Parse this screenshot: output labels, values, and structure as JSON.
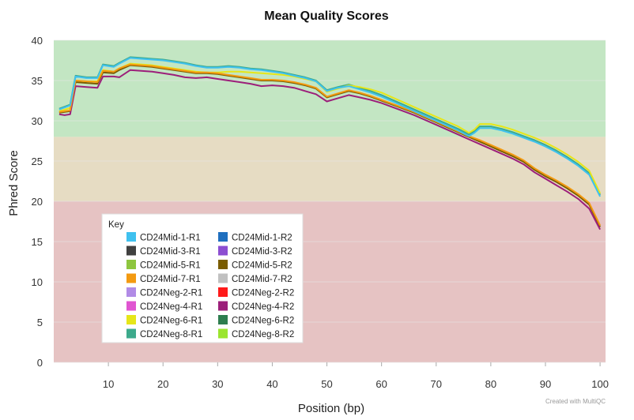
{
  "chart_data": {
    "type": "line",
    "title": "Mean Quality Scores",
    "xlabel": "Position (bp)",
    "ylabel": "Phred Score",
    "xlim": [
      0,
      101
    ],
    "ylim": [
      0,
      40
    ],
    "x_ticks": [
      "10",
      "20",
      "30",
      "40",
      "50",
      "60",
      "70",
      "80",
      "90",
      "100"
    ],
    "y_ticks": [
      "0",
      "5",
      "10",
      "15",
      "20",
      "25",
      "30",
      "35",
      "40"
    ],
    "bands": [
      {
        "from": 28,
        "to": 40,
        "color": "#c3e6c3"
      },
      {
        "from": 20,
        "to": 28,
        "color": "#e6dcc3"
      },
      {
        "from": 0,
        "to": 20,
        "color": "#e6c3c3"
      }
    ],
    "legend": {
      "title": "Key",
      "placement": "bottom-left",
      "entries": [
        {
          "name": "CD24Mid-1-R1",
          "color": "#3fc1ef"
        },
        {
          "name": "CD24Mid-1-R2",
          "color": "#1f6fbf"
        },
        {
          "name": "CD24Mid-3-R1",
          "color": "#404040"
        },
        {
          "name": "CD24Mid-3-R2",
          "color": "#8c4ed1"
        },
        {
          "name": "CD24Mid-5-R1",
          "color": "#8ec63f"
        },
        {
          "name": "CD24Mid-5-R2",
          "color": "#7a5c00"
        },
        {
          "name": "CD24Mid-7-R1",
          "color": "#f39a11"
        },
        {
          "name": "CD24Mid-7-R2",
          "color": "#c0c0c0"
        },
        {
          "name": "CD24Neg-2-R1",
          "color": "#b18be6"
        },
        {
          "name": "CD24Neg-2-R2",
          "color": "#ff1a1a"
        },
        {
          "name": "CD24Neg-4-R1",
          "color": "#e055d1"
        },
        {
          "name": "CD24Neg-4-R2",
          "color": "#9c1f7a"
        },
        {
          "name": "CD24Neg-6-R1",
          "color": "#e6e619"
        },
        {
          "name": "CD24Neg-6-R2",
          "color": "#2e7d4f"
        },
        {
          "name": "CD24Neg-8-R1",
          "color": "#3daa8c"
        },
        {
          "name": "CD24Neg-8-R2",
          "color": "#9be52e"
        }
      ]
    },
    "series": [
      {
        "name": "CD24Neg-8-R1",
        "color": "#3daa8c",
        "x": [
          1,
          3,
          4,
          6,
          8,
          9,
          11,
          12,
          14,
          16,
          18,
          20,
          22,
          24,
          26,
          28,
          30,
          32,
          34,
          36,
          38,
          40,
          42,
          44,
          46,
          48,
          50,
          52,
          54,
          56,
          58,
          60,
          62,
          64,
          66,
          68,
          70,
          72,
          74,
          76,
          77,
          78,
          80,
          82,
          84,
          86,
          88,
          90,
          92,
          94,
          96,
          98,
          100
        ],
        "values": [
          31.5,
          32,
          35.6,
          35.4,
          35.4,
          37,
          36.8,
          37.2,
          37.9,
          37.8,
          37.7,
          37.6,
          37.4,
          37.2,
          36.9,
          36.7,
          36.7,
          36.8,
          36.7,
          36.5,
          36.4,
          36.2,
          36.0,
          35.7,
          35.4,
          35.0,
          33.8,
          34.2,
          34.5,
          34.1,
          33.7,
          33.2,
          32.6,
          32.0,
          31.4,
          30.8,
          30.2,
          29.6,
          29.0,
          28.3,
          28.7,
          29.3,
          29.3,
          29.0,
          28.6,
          28.1,
          27.6,
          27.0,
          26.3,
          25.5,
          24.6,
          23.5,
          20.8
        ]
      },
      {
        "name": "CD24Neg-6-R1",
        "color": "#e6e619",
        "x": [
          1,
          3,
          4,
          6,
          8,
          9,
          11,
          12,
          14,
          16,
          18,
          20,
          22,
          24,
          26,
          28,
          30,
          32,
          34,
          36,
          38,
          40,
          42,
          44,
          46,
          48,
          50,
          52,
          54,
          56,
          58,
          60,
          62,
          64,
          66,
          68,
          70,
          72,
          74,
          76,
          77,
          78,
          80,
          82,
          84,
          86,
          88,
          90,
          92,
          94,
          96,
          98,
          100
        ],
        "values": [
          31.2,
          31.6,
          35.0,
          34.9,
          34.9,
          36.3,
          36.1,
          36.5,
          37.1,
          37.0,
          36.9,
          36.7,
          36.5,
          36.3,
          36.1,
          36.0,
          36.0,
          36.1,
          36.1,
          36.0,
          35.9,
          35.8,
          35.7,
          35.5,
          35.2,
          34.9,
          33.6,
          34.0,
          34.4,
          34.2,
          33.9,
          33.5,
          32.9,
          32.3,
          31.7,
          31.1,
          30.5,
          29.9,
          29.3,
          28.5,
          28.9,
          29.6,
          29.6,
          29.3,
          28.9,
          28.4,
          27.9,
          27.3,
          26.6,
          25.8,
          24.9,
          23.8,
          21.0
        ]
      },
      {
        "name": "CD24Mid-5-R2",
        "color": "#7a5c00",
        "x": [
          1,
          3,
          4,
          6,
          8,
          9,
          11,
          12,
          14,
          16,
          18,
          20,
          22,
          24,
          26,
          28,
          30,
          32,
          34,
          36,
          38,
          40,
          42,
          44,
          46,
          48,
          50,
          52,
          54,
          56,
          58,
          60,
          62,
          64,
          66,
          68,
          70,
          72,
          74,
          76,
          78,
          80,
          82,
          84,
          86,
          88,
          90,
          92,
          94,
          96,
          98,
          100
        ],
        "values": [
          31.0,
          31.2,
          34.8,
          34.7,
          34.6,
          36.0,
          35.9,
          36.3,
          36.9,
          36.8,
          36.7,
          36.5,
          36.3,
          36.1,
          35.9,
          35.9,
          35.8,
          35.6,
          35.4,
          35.2,
          35.0,
          35.0,
          34.9,
          34.7,
          34.4,
          34.0,
          32.9,
          33.3,
          33.7,
          33.4,
          33.0,
          32.5,
          32.0,
          31.5,
          31.0,
          30.4,
          29.8,
          29.2,
          28.6,
          28.0,
          27.4,
          26.8,
          26.2,
          25.6,
          24.9,
          23.9,
          23.1,
          22.4,
          21.6,
          20.7,
          19.6,
          16.8
        ]
      },
      {
        "name": "CD24Neg-4-R2",
        "color": "#9c1f7a",
        "x": [
          1,
          2,
          3,
          4,
          6,
          8,
          9,
          11,
          12,
          14,
          16,
          18,
          20,
          22,
          24,
          26,
          28,
          30,
          32,
          34,
          36,
          38,
          40,
          42,
          44,
          46,
          48,
          50,
          52,
          54,
          56,
          58,
          60,
          62,
          64,
          66,
          68,
          70,
          72,
          74,
          76,
          78,
          80,
          82,
          84,
          86,
          88,
          90,
          92,
          94,
          96,
          98,
          100
        ],
        "values": [
          30.8,
          30.7,
          30.8,
          34.3,
          34.2,
          34.1,
          35.5,
          35.5,
          35.4,
          36.3,
          36.2,
          36.1,
          35.9,
          35.7,
          35.4,
          35.3,
          35.4,
          35.2,
          35.0,
          34.8,
          34.6,
          34.3,
          34.4,
          34.3,
          34.1,
          33.7,
          33.3,
          32.4,
          32.8,
          33.2,
          32.9,
          32.6,
          32.2,
          31.7,
          31.2,
          30.7,
          30.1,
          29.5,
          28.9,
          28.3,
          27.7,
          27.1,
          26.5,
          25.9,
          25.3,
          24.6,
          23.6,
          22.8,
          22.0,
          21.2,
          20.3,
          19.1,
          16.5
        ]
      },
      {
        "name": "CD24Mid-7-R1",
        "color": "#f39a11",
        "x": [
          1,
          3,
          4,
          6,
          8,
          9,
          11,
          12,
          14,
          16,
          18,
          20,
          22,
          24,
          26,
          28,
          30,
          32,
          34,
          36,
          38,
          40,
          42,
          44,
          46,
          48,
          50,
          52,
          54,
          56,
          58,
          60,
          62,
          64,
          66,
          68,
          70,
          72,
          74,
          76,
          78,
          80,
          82,
          84,
          86,
          88,
          90,
          92,
          94,
          96,
          98,
          100
        ],
        "values": [
          31.1,
          31.3,
          35.0,
          34.9,
          34.8,
          36.2,
          36.1,
          36.5,
          37.0,
          36.9,
          36.8,
          36.6,
          36.4,
          36.2,
          36.0,
          36.0,
          35.9,
          35.7,
          35.5,
          35.3,
          35.1,
          35.1,
          35.0,
          34.8,
          34.5,
          34.1,
          33.0,
          33.4,
          33.8,
          33.5,
          33.1,
          32.6,
          32.1,
          31.6,
          31.1,
          30.5,
          29.9,
          29.3,
          28.7,
          28.1,
          27.6,
          27.0,
          26.4,
          25.8,
          25.1,
          24.1,
          23.3,
          22.6,
          21.8,
          20.9,
          19.8,
          17.0
        ]
      },
      {
        "name": "CD24Mid-1-R1",
        "color": "#3fc1ef",
        "x": [
          1,
          3,
          4,
          6,
          8,
          9,
          11,
          12,
          14,
          16,
          18,
          20,
          22,
          24,
          26,
          28,
          30,
          32,
          34,
          36,
          38,
          40,
          42,
          44,
          46,
          48,
          50,
          52,
          54,
          56,
          58,
          60,
          62,
          64,
          66,
          68,
          70,
          72,
          74,
          76,
          77,
          78,
          80,
          82,
          84,
          86,
          88,
          90,
          92,
          94,
          96,
          98,
          100
        ],
        "values": [
          31.4,
          31.9,
          35.5,
          35.3,
          35.3,
          36.9,
          36.7,
          37.1,
          37.8,
          37.7,
          37.6,
          37.5,
          37.3,
          37.1,
          36.8,
          36.6,
          36.6,
          36.7,
          36.6,
          36.4,
          36.3,
          36.1,
          35.9,
          35.6,
          35.3,
          34.9,
          33.7,
          34.1,
          34.3,
          33.9,
          33.5,
          33.0,
          32.4,
          31.8,
          31.2,
          30.6,
          30.0,
          29.4,
          28.8,
          28.1,
          28.5,
          29.1,
          29.1,
          28.8,
          28.4,
          27.9,
          27.4,
          26.8,
          26.1,
          25.3,
          24.4,
          23.3,
          20.6
        ]
      }
    ]
  },
  "footer": {
    "credit": "Created with MultiQC"
  }
}
